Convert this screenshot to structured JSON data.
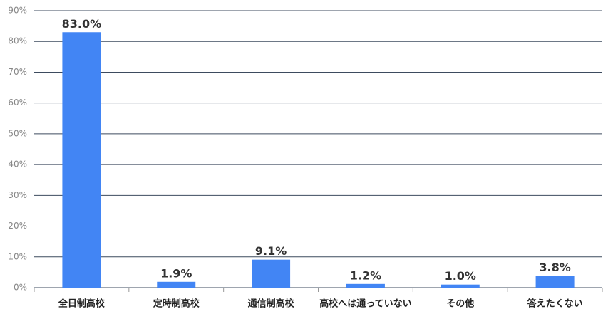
{
  "chart_data": {
    "type": "bar",
    "categories": [
      "全日制高校",
      "定時制高校",
      "通信制高校",
      "高校へは通っていない",
      "その他",
      "答えたくない"
    ],
    "values": [
      83.0,
      1.9,
      9.1,
      1.2,
      1.0,
      3.8
    ],
    "value_labels": [
      "83.0%",
      "1.9%",
      "9.1%",
      "1.2%",
      "1.0%",
      "3.8%"
    ],
    "color": "#4285f4",
    "ylim": [
      0,
      90
    ],
    "yticks": [
      {
        "value": 0,
        "label": "0%"
      },
      {
        "value": 10,
        "label": "10%"
      },
      {
        "value": 20,
        "label": "20%"
      },
      {
        "value": 30,
        "label": "30%"
      },
      {
        "value": 40,
        "label": "40%"
      },
      {
        "value": 50,
        "label": "50%"
      },
      {
        "value": 60,
        "label": "60%"
      },
      {
        "value": 70,
        "label": "70%"
      },
      {
        "value": 80,
        "label": "80%"
      },
      {
        "value": 90,
        "label": "90%"
      }
    ],
    "grid": true
  }
}
